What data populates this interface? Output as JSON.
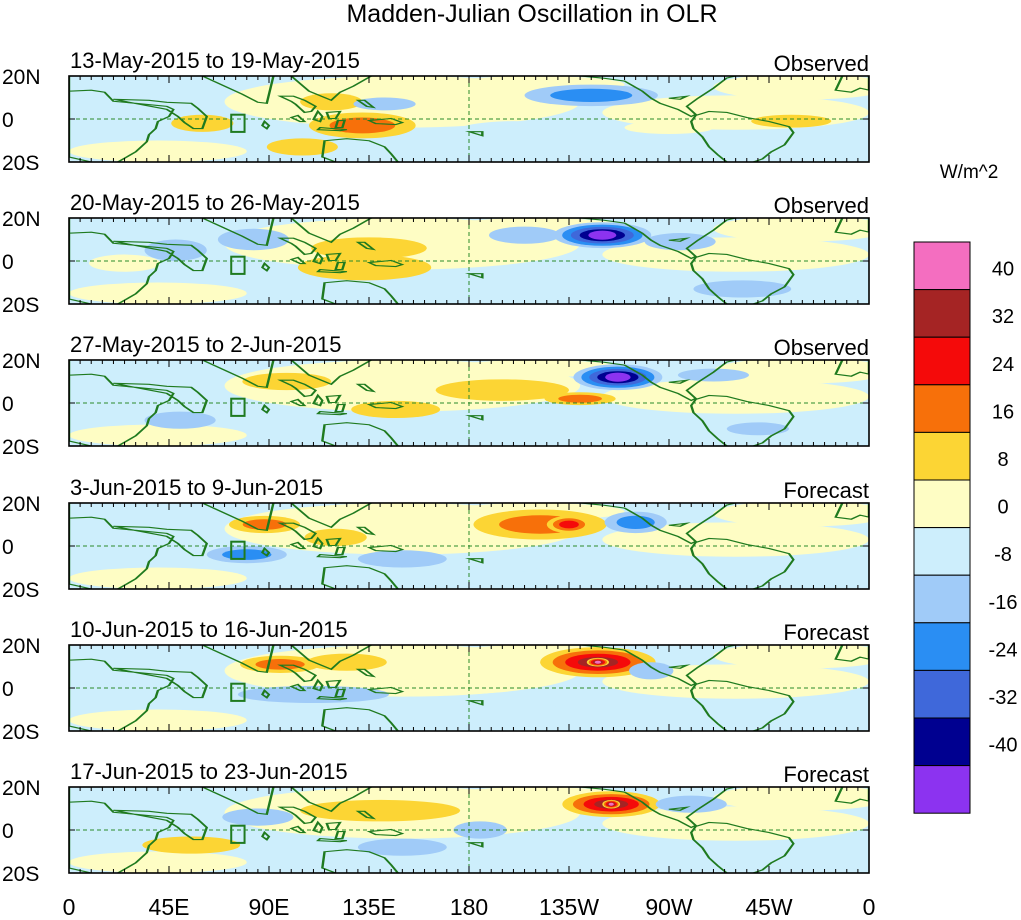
{
  "chart_data": {
    "type": "heatmap",
    "title": "Madden-Julian Oscillation in OLR",
    "colorbar": {
      "units": "W/m^2",
      "levels": [
        40,
        32,
        24,
        16,
        8,
        0,
        -8,
        -16,
        -24,
        -32,
        -40
      ],
      "colors": [
        "#f46ec0",
        "#a52424",
        "#f50a0a",
        "#f7700a",
        "#fcd534",
        "#fefdc4",
        "#cdeefc",
        "#a0cbf8",
        "#2a8ef3",
        "#3f68da",
        "#000090",
        "#8c33f0"
      ]
    },
    "x_ticks": [
      "0",
      "45E",
      "90E",
      "135E",
      "180",
      "135W",
      "90W",
      "45W",
      "0"
    ],
    "y_ticks": [
      "20N",
      "0",
      "20S"
    ],
    "lon_range": [
      0,
      360
    ],
    "lat_range": [
      -20,
      20
    ],
    "panels": [
      {
        "dates": "13-May-2015 to 19-May-2015",
        "kind": "Observed",
        "anomalies": [
          {
            "lon": 132,
            "lat": -3,
            "rx": 24,
            "ry": 6,
            "value": 20
          },
          {
            "lon": 118,
            "lat": 8,
            "rx": 14,
            "ry": 4,
            "value": 14
          },
          {
            "lon": 105,
            "lat": -13,
            "rx": 16,
            "ry": 4,
            "value": 8
          },
          {
            "lon": 60,
            "lat": -2,
            "rx": 14,
            "ry": 4,
            "value": 10
          },
          {
            "lon": 270,
            "lat": -4,
            "rx": 20,
            "ry": 3,
            "value": 5
          },
          {
            "lon": 325,
            "lat": -1,
            "rx": 18,
            "ry": 3,
            "value": 8
          },
          {
            "lon": 235,
            "lat": 11,
            "rx": 30,
            "ry": 5,
            "value": -18
          },
          {
            "lon": 142,
            "lat": 7,
            "rx": 14,
            "ry": 3,
            "value": -8
          },
          {
            "lon": 200,
            "lat": -6,
            "rx": 26,
            "ry": 5,
            "value": -6
          },
          {
            "lon": 20,
            "lat": 11,
            "rx": 14,
            "ry": 4,
            "value": -6
          }
        ]
      },
      {
        "dates": "20-May-2015 to 26-May-2015",
        "kind": "Observed",
        "anomalies": [
          {
            "lon": 133,
            "lat": -3,
            "rx": 30,
            "ry": 6,
            "value": 14
          },
          {
            "lon": 135,
            "lat": 6,
            "rx": 26,
            "ry": 5,
            "value": 10
          },
          {
            "lon": 240,
            "lat": 12,
            "rx": 22,
            "ry": 6,
            "value": -40
          },
          {
            "lon": 83,
            "lat": 10,
            "rx": 16,
            "ry": 5,
            "value": -10
          },
          {
            "lon": 48,
            "lat": 5,
            "rx": 14,
            "ry": 5,
            "value": -10
          },
          {
            "lon": 205,
            "lat": 12,
            "rx": 16,
            "ry": 4,
            "value": -8
          },
          {
            "lon": 275,
            "lat": 9,
            "rx": 16,
            "ry": 4,
            "value": -8
          },
          {
            "lon": 303,
            "lat": -13,
            "rx": 22,
            "ry": 4,
            "value": -8
          },
          {
            "lon": 25,
            "lat": -1,
            "rx": 16,
            "ry": 4,
            "value": 6
          }
        ]
      },
      {
        "dates": "27-May-2015 to 2-Jun-2015",
        "kind": "Observed",
        "anomalies": [
          {
            "lon": 247,
            "lat": 12,
            "rx": 20,
            "ry": 6,
            "value": -40
          },
          {
            "lon": 195,
            "lat": 6,
            "rx": 30,
            "ry": 5,
            "value": 14
          },
          {
            "lon": 230,
            "lat": 2,
            "rx": 16,
            "ry": 3,
            "value": 16
          },
          {
            "lon": 147,
            "lat": -3,
            "rx": 20,
            "ry": 4,
            "value": 10
          },
          {
            "lon": 98,
            "lat": 10,
            "rx": 20,
            "ry": 4,
            "value": 8
          },
          {
            "lon": 50,
            "lat": -8,
            "rx": 16,
            "ry": 4,
            "value": -8
          },
          {
            "lon": 290,
            "lat": 13,
            "rx": 16,
            "ry": 3,
            "value": -8
          },
          {
            "lon": 310,
            "lat": -12,
            "rx": 14,
            "ry": 3,
            "value": -8
          }
        ]
      },
      {
        "dates": "3-Jun-2015 to 9-Jun-2015",
        "kind": "Forecast",
        "anomalies": [
          {
            "lon": 212,
            "lat": 10,
            "rx": 30,
            "ry": 7,
            "value": 22
          },
          {
            "lon": 225,
            "lat": 10,
            "rx": 10,
            "ry": 4,
            "value": 26
          },
          {
            "lon": 88,
            "lat": 10,
            "rx": 16,
            "ry": 4,
            "value": 18
          },
          {
            "lon": 120,
            "lat": 4,
            "rx": 14,
            "ry": 4,
            "value": 8
          },
          {
            "lon": 255,
            "lat": 11,
            "rx": 14,
            "ry": 5,
            "value": -22
          },
          {
            "lon": 80,
            "lat": -4,
            "rx": 18,
            "ry": 4,
            "value": -20
          },
          {
            "lon": 150,
            "lat": -6,
            "rx": 20,
            "ry": 4,
            "value": -8
          },
          {
            "lon": 190,
            "lat": -9,
            "rx": 22,
            "ry": 4,
            "value": -6
          },
          {
            "lon": 25,
            "lat": 2,
            "rx": 16,
            "ry": 4,
            "value": -6
          }
        ]
      },
      {
        "dates": "10-Jun-2015 to 16-Jun-2015",
        "kind": "Forecast",
        "anomalies": [
          {
            "lon": 238,
            "lat": 12,
            "rx": 26,
            "ry": 7,
            "value": 34
          },
          {
            "lon": 238,
            "lat": 12,
            "rx": 5,
            "ry": 2,
            "value": 44
          },
          {
            "lon": 95,
            "lat": 11,
            "rx": 18,
            "ry": 4,
            "value": 20
          },
          {
            "lon": 125,
            "lat": 12,
            "rx": 18,
            "ry": 4,
            "value": 8
          },
          {
            "lon": 160,
            "lat": 2,
            "rx": 16,
            "ry": 4,
            "value": 6
          },
          {
            "lon": 262,
            "lat": 8,
            "rx": 10,
            "ry": 4,
            "value": -10
          },
          {
            "lon": 110,
            "lat": -3,
            "rx": 34,
            "ry": 4,
            "value": -10
          },
          {
            "lon": 200,
            "lat": -6,
            "rx": 24,
            "ry": 4,
            "value": -6
          }
        ]
      },
      {
        "dates": "17-Jun-2015 to 23-Jun-2015",
        "kind": "Forecast",
        "anomalies": [
          {
            "lon": 244,
            "lat": 12,
            "rx": 22,
            "ry": 6,
            "value": 34
          },
          {
            "lon": 244,
            "lat": 12,
            "rx": 4,
            "ry": 2,
            "value": 44
          },
          {
            "lon": 140,
            "lat": 9,
            "rx": 36,
            "ry": 5,
            "value": 12
          },
          {
            "lon": 55,
            "lat": -7,
            "rx": 22,
            "ry": 4,
            "value": 12
          },
          {
            "lon": 185,
            "lat": 0,
            "rx": 12,
            "ry": 4,
            "value": -14
          },
          {
            "lon": 85,
            "lat": 6,
            "rx": 16,
            "ry": 4,
            "value": -14
          },
          {
            "lon": 150,
            "lat": -8,
            "rx": 20,
            "ry": 4,
            "value": -8
          },
          {
            "lon": 280,
            "lat": 12,
            "rx": 16,
            "ry": 4,
            "value": -8
          }
        ]
      }
    ]
  }
}
